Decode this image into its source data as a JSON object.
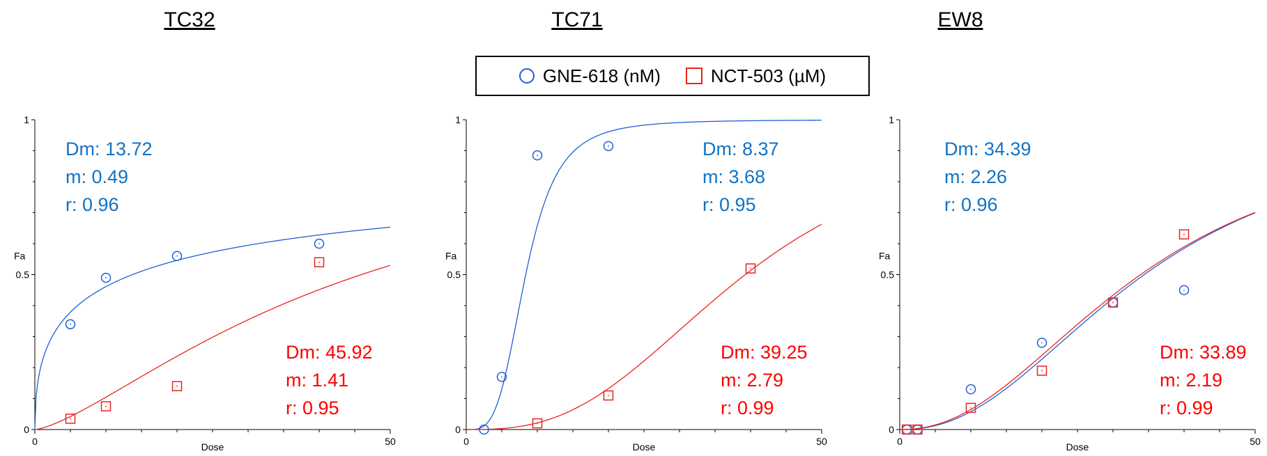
{
  "colors": {
    "gne": "#1f5fd6",
    "nct": "#e8231e",
    "gne_text": "#1273c4",
    "nct_text": "#ff0000"
  },
  "legend": {
    "gne_label": "GNE-618 (nM)",
    "nct_label": "NCT-503 (µM)"
  },
  "chart_data": [
    {
      "type": "scatter",
      "title": "TC32",
      "xlabel": "Dose",
      "ylabel": "Fa",
      "xlim": [
        0,
        50
      ],
      "ylim": [
        0,
        1
      ],
      "x_ticks": [
        "0",
        "50"
      ],
      "y_ticks": [
        "0",
        "0.5",
        "1"
      ],
      "series": [
        {
          "name": "GNE-618 (nM)",
          "marker": "circle",
          "x": [
            5,
            10,
            20,
            40
          ],
          "y": [
            0.34,
            0.49,
            0.56,
            0.6
          ],
          "fit": {
            "Dm": 13.72,
            "m": 0.49,
            "r": 0.96
          }
        },
        {
          "name": "NCT-503 (µM)",
          "marker": "square",
          "x": [
            5,
            10,
            20,
            40
          ],
          "y": [
            0.035,
            0.075,
            0.14,
            0.54
          ],
          "fit": {
            "Dm": 45.92,
            "m": 1.41,
            "r": 0.95
          }
        }
      ],
      "annotations": {
        "gne": [
          "Dm: 13.72",
          "m: 0.49",
          "r: 0.96"
        ],
        "nct": [
          "Dm: 45.92",
          "m: 1.41",
          "r: 0.95"
        ]
      }
    },
    {
      "type": "scatter",
      "title": "TC71",
      "xlabel": "Dose",
      "ylabel": "Fa",
      "xlim": [
        0,
        50
      ],
      "ylim": [
        0,
        1
      ],
      "x_ticks": [
        "0",
        "50"
      ],
      "y_ticks": [
        "0",
        "0.5",
        "1"
      ],
      "series": [
        {
          "name": "GNE-618 (nM)",
          "marker": "circle",
          "x": [
            2.5,
            5,
            10,
            20
          ],
          "y": [
            0.0,
            0.17,
            0.885,
            0.915
          ],
          "fit": {
            "Dm": 8.37,
            "m": 3.68,
            "r": 0.95
          }
        },
        {
          "name": "NCT-503 (µM)",
          "marker": "square",
          "x": [
            10,
            20,
            40
          ],
          "y": [
            0.02,
            0.11,
            0.52
          ],
          "fit": {
            "Dm": 39.25,
            "m": 2.79,
            "r": 0.99
          }
        }
      ],
      "annotations": {
        "gne": [
          "Dm: 8.37",
          "m: 3.68",
          "r: 0.95"
        ],
        "nct": [
          "Dm: 39.25",
          "m: 2.79",
          "r: 0.99"
        ]
      }
    },
    {
      "type": "scatter",
      "title": "EW8",
      "xlabel": "Dose",
      "ylabel": "Fa",
      "xlim": [
        0,
        50
      ],
      "ylim": [
        0,
        1
      ],
      "x_ticks": [
        "0",
        "50"
      ],
      "y_ticks": [
        "0",
        "0.5",
        "1"
      ],
      "series": [
        {
          "name": "GNE-618 (nM)",
          "marker": "circle",
          "x": [
            1,
            2.5,
            10,
            20,
            30,
            40
          ],
          "y": [
            0.0,
            0.0,
            0.13,
            0.28,
            0.41,
            0.45
          ],
          "fit": {
            "Dm": 34.39,
            "m": 2.26,
            "r": 0.96
          }
        },
        {
          "name": "NCT-503 (µM)",
          "marker": "square",
          "x": [
            1,
            2.5,
            10,
            20,
            30,
            40
          ],
          "y": [
            0.0,
            0.0,
            0.07,
            0.19,
            0.41,
            0.63
          ],
          "fit": {
            "Dm": 33.89,
            "m": 2.19,
            "r": 0.99
          }
        }
      ],
      "annotations": {
        "gne": [
          "Dm: 34.39",
          "m: 2.26",
          "r: 0.96"
        ],
        "nct": [
          "Dm: 33.89",
          "m: 2.19",
          "r: 0.99"
        ]
      }
    }
  ]
}
